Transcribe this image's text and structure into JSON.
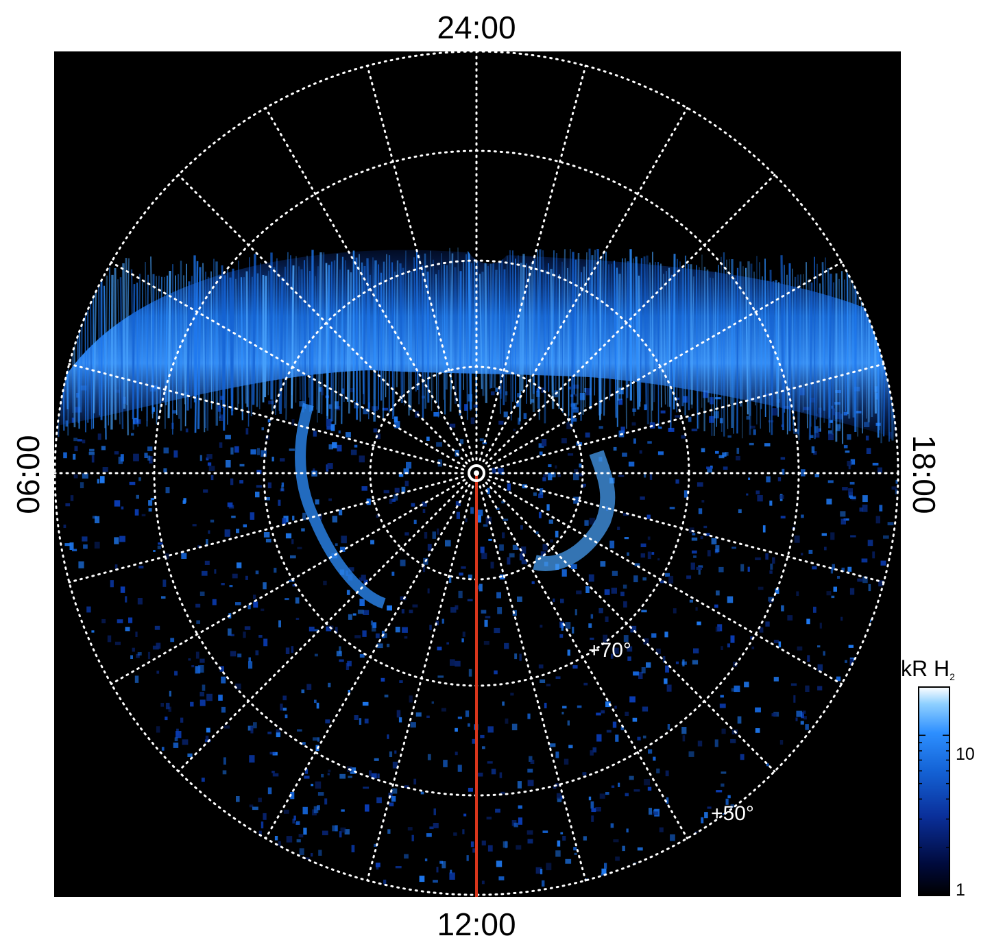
{
  "figure": {
    "hour_labels": {
      "top": "24:00",
      "bottom": "12:00",
      "left": "06:00",
      "right": "18:00"
    },
    "latitude_labels": [
      "+70°",
      "+50°"
    ],
    "colorbar": {
      "title_main": "kR H",
      "title_sub": "2",
      "tick_labels": [
        "10",
        "1"
      ],
      "scale": "log",
      "colors": [
        "#000000",
        "#000a3c",
        "#0a2f9a",
        "#1463d6",
        "#2d8fff",
        "#8fd0ff",
        "#ffffff"
      ]
    },
    "colors": {
      "background": "#000000",
      "grid": "#ffffff",
      "meridian_marker": "#d9361c",
      "aurora_dim": "#0a3cb4",
      "aurora_mid": "#1e78f0",
      "aurora_bright": "#78c8ff"
    }
  }
}
